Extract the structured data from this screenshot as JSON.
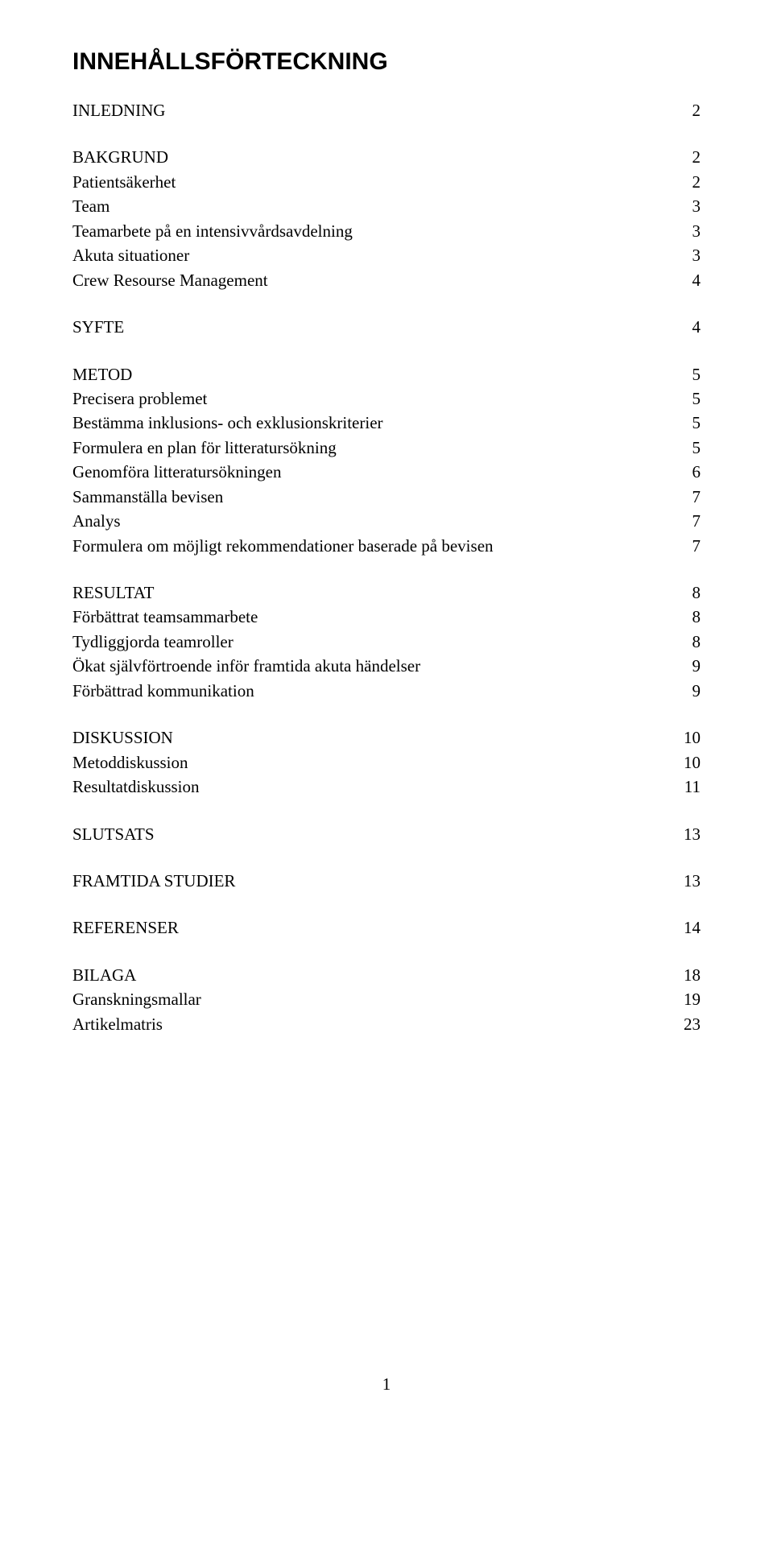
{
  "title": "INNEHÅLLSFÖRTECKNING",
  "sections": [
    {
      "rows": [
        {
          "label": "INLEDNING",
          "page": "2"
        }
      ]
    },
    {
      "rows": [
        {
          "label": "BAKGRUND",
          "page": "2"
        },
        {
          "label": "Patientsäkerhet",
          "page": "2"
        },
        {
          "label": "Team",
          "page": "3"
        },
        {
          "label": "Teamarbete på en intensivvårdsavdelning",
          "page": "3"
        },
        {
          "label": "Akuta situationer",
          "page": "3"
        },
        {
          "label": "Crew Resourse Management",
          "page": "4"
        }
      ]
    },
    {
      "rows": [
        {
          "label": "SYFTE",
          "page": "4"
        }
      ]
    },
    {
      "rows": [
        {
          "label": "METOD",
          "page": "5"
        },
        {
          "label": "Precisera problemet",
          "page": "5"
        },
        {
          "label": "Bestämma inklusions- och exklusionskriterier",
          "page": "5"
        },
        {
          "label": "Formulera en plan för litteratursökning",
          "page": "5"
        },
        {
          "label": "Genomföra litteratursökningen",
          "page": "6"
        },
        {
          "label": "Sammanställa bevisen",
          "page": "7"
        },
        {
          "label": "Analys",
          "page": "7"
        },
        {
          "label": "Formulera om möjligt rekommendationer baserade på bevisen",
          "page": "7"
        }
      ]
    },
    {
      "rows": [
        {
          "label": "RESULTAT",
          "page": "8"
        },
        {
          "label": "Förbättrat teamsammarbete",
          "page": "8"
        },
        {
          "label": "Tydliggjorda teamroller",
          "page": "8"
        },
        {
          "label": "Ökat självförtroende inför framtida akuta händelser",
          "page": "9"
        },
        {
          "label": "Förbättrad kommunikation",
          "page": "9"
        }
      ]
    },
    {
      "rows": [
        {
          "label": "DISKUSSION",
          "page": "10"
        },
        {
          "label": "Metoddiskussion",
          "page": "10"
        },
        {
          "label": "Resultatdiskussion",
          "page": "11"
        }
      ]
    },
    {
      "rows": [
        {
          "label": "SLUTSATS",
          "page": "13"
        }
      ]
    },
    {
      "rows": [
        {
          "label": "FRAMTIDA STUDIER",
          "page": "13"
        }
      ]
    },
    {
      "rows": [
        {
          "label": "REFERENSER",
          "page": "14"
        }
      ]
    },
    {
      "rows": [
        {
          "label": "BILAGA",
          "page": "18"
        },
        {
          "label": "Granskningsmallar",
          "page": "19"
        },
        {
          "label": "Artikelmatris",
          "page": "23"
        }
      ]
    }
  ],
  "page_number": "1"
}
